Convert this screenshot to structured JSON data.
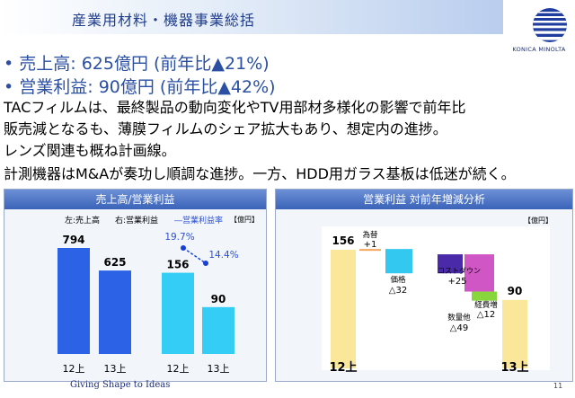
{
  "header": {
    "title": "産業用材料・機器事業総括",
    "logo_text": "KONICA MINOLTA"
  },
  "bullets": [
    "• 売上高:  625億円 (前年比▲21%)",
    "• 営業利益: 90億円 (前年比▲42%)"
  ],
  "body_lines": [
    "TACフィルムは、最終製品の動向変化やTV用部材多様化の影響で前年比",
    "販売減となるも、薄膜フィルムのシェア拡大もあり、想定内の進捗。",
    "レンズ関連も概ね計画線。",
    "計測機器はM&Aが奏功し順調な進捗。一方、HDD用ガラス基板は低迷が続く。"
  ],
  "left_panel": {
    "title": "売上高/営業利益",
    "legend_left": "左:売上高",
    "legend_right": "右:営業利益",
    "legend_rate": "―営業利益率",
    "unit": "【億円】"
  },
  "right_panel": {
    "title": "営業利益  対前年増減分析",
    "unit": "【億円】"
  },
  "footer": {
    "tagline": "Giving Shape to Ideas",
    "page": "11"
  },
  "colors": {
    "sales_bar": "#2b62e6",
    "profit_bar": "#33cdf6",
    "rate_line": "#1a3fd0",
    "waterfall_base": "#fbe79a",
    "fx": "#f6a45a",
    "price": "#33c8f0",
    "cost": "#4a2aa8",
    "volume": "#d056c6",
    "expense": "#88d63c"
  },
  "chart_data": [
    {
      "type": "bar",
      "title": "売上高/営業利益",
      "categories": [
        "12上",
        "13上"
      ],
      "series": [
        {
          "name": "売上高",
          "values": [
            794,
            625
          ]
        },
        {
          "name": "営業利益",
          "values": [
            156,
            90
          ]
        },
        {
          "name": "営業利益率",
          "values": [
            "19.7%",
            "14.4%"
          ]
        }
      ],
      "ylim": [
        0,
        900
      ]
    },
    {
      "type": "bar",
      "title": "営業利益  対前年増減分析",
      "categories": [
        "12上",
        "為替",
        "価格",
        "コストダウン",
        "数量他",
        "経費増",
        "13上"
      ],
      "deltas": [
        156,
        1,
        -32,
        25,
        -49,
        -12,
        90
      ],
      "labels": [
        "156",
        "為替\n+1",
        "価格\n△32",
        "コストダウン\n+25",
        "数量他\n△49",
        "経費増\n△12",
        "90"
      ],
      "ylim": [
        0,
        180
      ]
    }
  ]
}
